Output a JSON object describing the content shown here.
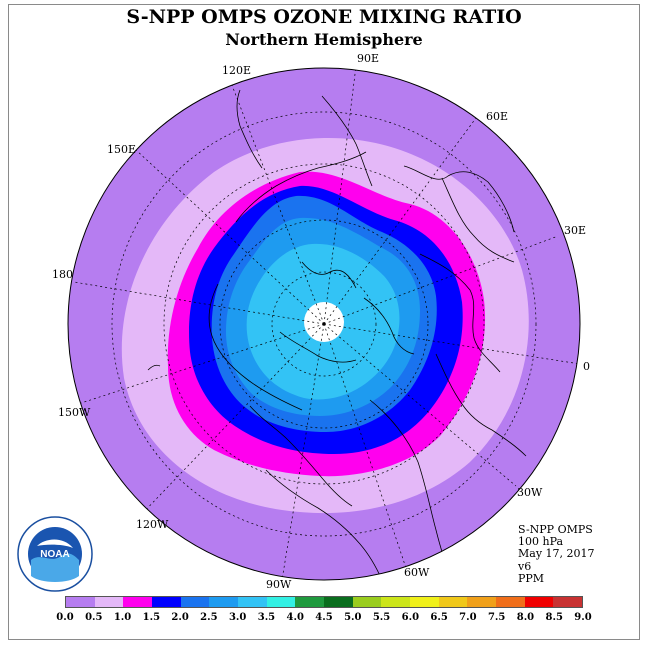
{
  "title": "S-NPP OMPS OZONE MIXING RATIO",
  "subtitle": "Northern Hemisphere",
  "longitude_labels": [
    "90E",
    "120E",
    "60E",
    "150E",
    "30E",
    "180",
    "0",
    "150W",
    "30W",
    "120W",
    "60W",
    "90W"
  ],
  "info": {
    "instrument": "S-NPP OMPS",
    "level": "100 hPa",
    "date": "May 17, 2017",
    "version": "v6",
    "units": "PPM"
  },
  "logo_text": "NOAA",
  "colorbar": {
    "ticks": [
      "0.0",
      "0.5",
      "1.0",
      "1.5",
      "2.0",
      "2.5",
      "3.0",
      "3.5",
      "4.0",
      "4.5",
      "5.0",
      "5.5",
      "6.0",
      "6.5",
      "7.0",
      "7.5",
      "8.0",
      "8.5",
      "9.0"
    ],
    "colors": [
      "#b67df0",
      "#e4b8f8",
      "#ff00ee",
      "#0000ff",
      "#1a73ef",
      "#1e9bf0",
      "#33c3f5",
      "#33f0e4",
      "#1f9a3e",
      "#0a6e1e",
      "#9acd1e",
      "#cce51a",
      "#f0f01a",
      "#f0c81a",
      "#f0a01a",
      "#f06e1a",
      "#f00000",
      "#c83232"
    ]
  },
  "map_colors": {
    "outer": "#b67df0",
    "ring2": "#e4b8f8",
    "ring3": "#ff00ee",
    "ring4": "#0000ff",
    "ring5": "#1a73ef",
    "ring6": "#1e9bf0",
    "ring7": "#33c3f5",
    "pole": "#ffffff"
  }
}
